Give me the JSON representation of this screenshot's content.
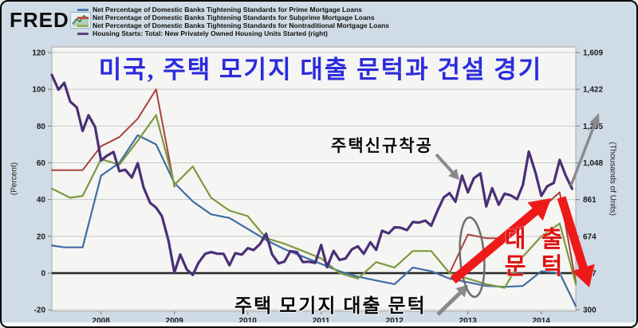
{
  "header": {
    "logo_text": "FRED",
    "legend": [
      {
        "label": "Net Percentage of Domestic Banks Tightening Standards for Prime Mortgage Loans",
        "color": "#4a7cb5"
      },
      {
        "label": "Net Percentage of Domestic Banks Tightening Standards for Subprime Mortgage Loans",
        "color": "#c0504d"
      },
      {
        "label": "Net Percentage of Domestic Banks Tightening Standards for Nontraditional Mortgage Loans",
        "color": "#94b054"
      },
      {
        "label": "Housing Starts: Total: New Privately Owned Housing Units Started (right)",
        "color": "#5a4080"
      }
    ]
  },
  "annotations": {
    "title": "미국, 주택 모기지 대출 문턱과 건설 경기",
    "title_color": "#2b2bdd",
    "housing_starts": "주택신규착공",
    "mortgage_threshold": "주택 모기지 대출 문턱",
    "loan_line1": "대 출",
    "loan_line2": "문 턱",
    "loan_color": "#e01010",
    "annotation_red": "#ee1a1a",
    "annotation_gray": "#8a8a8a"
  },
  "chart_data": {
    "type": "line",
    "x_axis": {
      "ticks": [
        "2008",
        "2009",
        "2010",
        "2011",
        "2012",
        "2013",
        "2014"
      ],
      "domain": [
        2007.33,
        2014.47
      ],
      "grid": false
    },
    "left_axis": {
      "title": "(Percent)",
      "ticks": [
        "120",
        "100",
        "80",
        "60",
        "40",
        "20",
        "0",
        "-20"
      ],
      "tick_values": [
        120,
        100,
        80,
        60,
        40,
        20,
        0,
        -20
      ],
      "domain": [
        -20,
        120
      ],
      "grid": true
    },
    "right_axis": {
      "title": "(Thousands of Units)",
      "ticks": [
        "1,609",
        "1,422",
        "1,235",
        "1,048",
        "861",
        "674",
        "487",
        "300"
      ],
      "tick_values": [
        1609,
        1422,
        1235,
        1048,
        861,
        674,
        487,
        300
      ],
      "domain": [
        300,
        1609
      ]
    },
    "zero_line": 0,
    "series": [
      {
        "name": "prime_mortgage_tightening",
        "axis": "left",
        "color": "#3e6da5",
        "width": 2.2,
        "points": [
          [
            2007.33,
            15
          ],
          [
            2007.5,
            14
          ],
          [
            2007.75,
            14
          ],
          [
            2008,
            53
          ],
          [
            2008.25,
            60
          ],
          [
            2008.5,
            75
          ],
          [
            2008.75,
            70
          ],
          [
            2009,
            49
          ],
          [
            2009.25,
            39
          ],
          [
            2009.5,
            32
          ],
          [
            2009.75,
            30
          ],
          [
            2010,
            24
          ],
          [
            2010.25,
            18
          ],
          [
            2010.5,
            13
          ],
          [
            2010.75,
            9
          ],
          [
            2011,
            5
          ],
          [
            2011.25,
            1
          ],
          [
            2011.5,
            -2
          ],
          [
            2011.75,
            -4
          ],
          [
            2012,
            -6
          ],
          [
            2012.25,
            3
          ],
          [
            2012.5,
            1
          ],
          [
            2012.75,
            -3
          ],
          [
            2013,
            -5
          ],
          [
            2013.25,
            -7
          ],
          [
            2013.5,
            -7.5
          ],
          [
            2013.75,
            -7
          ],
          [
            2014,
            1
          ],
          [
            2014.25,
            0
          ],
          [
            2014.47,
            -18
          ]
        ]
      },
      {
        "name": "subprime_mortgage_tightening",
        "axis": "left",
        "color": "#a8423b",
        "width": 2,
        "segments": [
          [
            [
              2007.33,
              56
            ],
            [
              2007.5,
              56
            ],
            [
              2007.75,
              56
            ],
            [
              2008,
              69
            ],
            [
              2008.25,
              74
            ],
            [
              2008.5,
              84
            ],
            [
              2008.75,
              100
            ],
            [
              2009,
              47
            ]
          ],
          [
            [
              2012.75,
              0
            ],
            [
              2013,
              21
            ],
            [
              2013.25,
              19
            ],
            [
              2013.5,
              19
            ],
            [
              2013.75,
              26
            ],
            [
              2014,
              35
            ],
            [
              2014.25,
              44
            ],
            [
              2014.47,
              -5
            ]
          ]
        ]
      },
      {
        "name": "nontraditional_mortgage_tightening",
        "axis": "left",
        "color": "#7c9a3d",
        "width": 2.2,
        "points": [
          [
            2007.33,
            46
          ],
          [
            2007.58,
            41
          ],
          [
            2007.75,
            42
          ],
          [
            2008,
            62
          ],
          [
            2008.25,
            59
          ],
          [
            2008.5,
            72
          ],
          [
            2008.75,
            86
          ],
          [
            2009,
            48
          ],
          [
            2009.25,
            58
          ],
          [
            2009.5,
            41
          ],
          [
            2009.75,
            34
          ],
          [
            2010,
            31
          ],
          [
            2010.25,
            19
          ],
          [
            2010.5,
            16
          ],
          [
            2010.75,
            12
          ],
          [
            2011,
            8
          ],
          [
            2011.25,
            0
          ],
          [
            2011.5,
            -3
          ],
          [
            2011.75,
            6
          ],
          [
            2012,
            3
          ],
          [
            2012.25,
            12
          ],
          [
            2012.5,
            12
          ],
          [
            2012.75,
            0
          ],
          [
            2013,
            -3
          ],
          [
            2013.25,
            -6
          ],
          [
            2013.5,
            -8
          ],
          [
            2013.75,
            9
          ],
          [
            2014,
            20
          ],
          [
            2014.25,
            27
          ],
          [
            2014.47,
            -6
          ]
        ]
      },
      {
        "name": "housing_starts",
        "axis": "right",
        "color": "#4a2f77",
        "width": 3.2,
        "points": [
          [
            2007.33,
            1495
          ],
          [
            2007.42,
            1420
          ],
          [
            2007.5,
            1455
          ],
          [
            2007.58,
            1360
          ],
          [
            2007.67,
            1330
          ],
          [
            2007.75,
            1210
          ],
          [
            2007.83,
            1290
          ],
          [
            2007.92,
            1230
          ],
          [
            2008.0,
            1060
          ],
          [
            2008.08,
            1084
          ],
          [
            2008.17,
            1103
          ],
          [
            2008.25,
            1005
          ],
          [
            2008.33,
            1013
          ],
          [
            2008.42,
            973
          ],
          [
            2008.5,
            1046
          ],
          [
            2008.58,
            923
          ],
          [
            2008.67,
            844
          ],
          [
            2008.75,
            820
          ],
          [
            2008.83,
            777
          ],
          [
            2008.92,
            652
          ],
          [
            2009.0,
            490
          ],
          [
            2009.08,
            582
          ],
          [
            2009.17,
            505
          ],
          [
            2009.25,
            478
          ],
          [
            2009.33,
            540
          ],
          [
            2009.42,
            585
          ],
          [
            2009.5,
            594
          ],
          [
            2009.58,
            586
          ],
          [
            2009.67,
            585
          ],
          [
            2009.75,
            527
          ],
          [
            2009.83,
            588
          ],
          [
            2009.92,
            581
          ],
          [
            2010.0,
            614
          ],
          [
            2010.08,
            604
          ],
          [
            2010.17,
            636
          ],
          [
            2010.25,
            687
          ],
          [
            2010.33,
            583
          ],
          [
            2010.42,
            536
          ],
          [
            2010.5,
            546
          ],
          [
            2010.58,
            599
          ],
          [
            2010.67,
            594
          ],
          [
            2010.75,
            543
          ],
          [
            2010.83,
            545
          ],
          [
            2010.92,
            539
          ],
          [
            2011.0,
            630
          ],
          [
            2011.08,
            517
          ],
          [
            2011.17,
            600
          ],
          [
            2011.25,
            554
          ],
          [
            2011.33,
            561
          ],
          [
            2011.42,
            608
          ],
          [
            2011.5,
            623
          ],
          [
            2011.58,
            585
          ],
          [
            2011.67,
            644
          ],
          [
            2011.75,
            605
          ],
          [
            2011.83,
            702
          ],
          [
            2011.92,
            689
          ],
          [
            2012.0,
            720
          ],
          [
            2012.08,
            718
          ],
          [
            2012.17,
            706
          ],
          [
            2012.25,
            747
          ],
          [
            2012.33,
            744
          ],
          [
            2012.42,
            754
          ],
          [
            2012.5,
            728
          ],
          [
            2012.58,
            800
          ],
          [
            2012.67,
            872
          ],
          [
            2012.75,
            894
          ],
          [
            2012.83,
            850
          ],
          [
            2012.92,
            983
          ],
          [
            2013.0,
            898
          ],
          [
            2013.08,
            969
          ],
          [
            2013.17,
            994
          ],
          [
            2013.25,
            826
          ],
          [
            2013.33,
            919
          ],
          [
            2013.42,
            835
          ],
          [
            2013.5,
            891
          ],
          [
            2013.58,
            883
          ],
          [
            2013.67,
            863
          ],
          [
            2013.75,
            936
          ],
          [
            2013.83,
            1105
          ],
          [
            2013.92,
            999
          ],
          [
            2014.0,
            880
          ],
          [
            2014.08,
            928
          ],
          [
            2014.17,
            946
          ],
          [
            2014.25,
            1063
          ],
          [
            2014.33,
            985
          ],
          [
            2014.42,
            916
          ]
        ]
      }
    ]
  },
  "colors": {
    "frame_bg": "#cfdbe6",
    "plot_bg": "#f5f5f3",
    "grid": "#c9c9c9",
    "zero_line": "#2b2b2b",
    "tick_text": "#1b1b1b"
  }
}
